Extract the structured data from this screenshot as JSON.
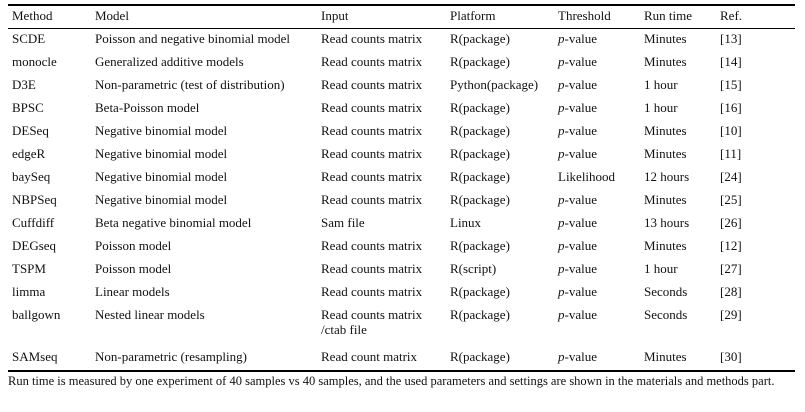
{
  "table": {
    "columns": [
      "Method",
      "Model",
      "Input",
      "Platform",
      "Threshold",
      "Run time",
      "Ref."
    ],
    "rows": [
      {
        "method": "SCDE",
        "model": "Poisson and negative binomial model",
        "input": "Read counts matrix",
        "platform": "R(package)",
        "threshold_prefix": "p",
        "threshold_suffix": "-value",
        "runtime": "Minutes",
        "ref": "[13]"
      },
      {
        "method": "monocle",
        "model": "Generalized additive models",
        "input": "Read counts matrix",
        "platform": "R(package)",
        "threshold_prefix": "p",
        "threshold_suffix": "-value",
        "runtime": "Minutes",
        "ref": "[14]"
      },
      {
        "method": "D3E",
        "model": "Non-parametric (test of distribution)",
        "input": "Read counts matrix",
        "platform": "Python(package)",
        "threshold_prefix": "p",
        "threshold_suffix": "-value",
        "runtime": "1 hour",
        "ref": "[15]"
      },
      {
        "method": "BPSC",
        "model": "Beta-Poisson model",
        "input": "Read counts matrix",
        "platform": "R(package)",
        "threshold_prefix": "p",
        "threshold_suffix": "-value",
        "runtime": "1 hour",
        "ref": "[16]"
      },
      {
        "method": "DESeq",
        "model": "Negative binomial model",
        "input": "Read counts matrix",
        "platform": "R(package)",
        "threshold_prefix": "p",
        "threshold_suffix": "-value",
        "runtime": "Minutes",
        "ref": "[10]"
      },
      {
        "method": "edgeR",
        "model": "Negative binomial model",
        "input": "Read counts matrix",
        "platform": "R(package)",
        "threshold_prefix": "p",
        "threshold_suffix": "-value",
        "runtime": "Minutes",
        "ref": "[11]"
      },
      {
        "method": "baySeq",
        "model": "Negative binomial model",
        "input": "Read counts matrix",
        "platform": "R(package)",
        "threshold_prefix": "",
        "threshold_suffix": "Likelihood",
        "runtime": "12 hours",
        "ref": "[24]"
      },
      {
        "method": "NBPSeq",
        "model": "Negative binomial model",
        "input": "Read counts matrix",
        "platform": "R(package)",
        "threshold_prefix": "p",
        "threshold_suffix": "-value",
        "runtime": "Minutes",
        "ref": "[25]"
      },
      {
        "method": "Cuffdiff",
        "model": "Beta negative binomial model",
        "input": "Sam file",
        "platform": "Linux",
        "threshold_prefix": "p",
        "threshold_suffix": "-value",
        "runtime": "13 hours",
        "ref": "[26]"
      },
      {
        "method": "DEGseq",
        "model": "Poisson model",
        "input": "Read counts matrix",
        "platform": "R(package)",
        "threshold_prefix": "p",
        "threshold_suffix": "-value",
        "runtime": "Minutes",
        "ref": "[12]"
      },
      {
        "method": "TSPM",
        "model": "Poisson model",
        "input": "Read counts matrix",
        "platform": "R(script)",
        "threshold_prefix": "p",
        "threshold_suffix": "-value",
        "runtime": "1 hour",
        "ref": "[27]"
      },
      {
        "method": "limma",
        "model": "Linear models",
        "input": "Read counts matrix",
        "platform": "R(package)",
        "threshold_prefix": "p",
        "threshold_suffix": "-value",
        "runtime": "Seconds",
        "ref": "[28]"
      },
      {
        "method": "ballgown",
        "model": "Nested linear models",
        "input": "Read counts matrix",
        "input_line2": "/ctab file",
        "platform": "R(package)",
        "threshold_prefix": "p",
        "threshold_suffix": "-value",
        "runtime": "Seconds",
        "ref": "[29]"
      },
      {
        "method": "SAMseq",
        "model": "Non-parametric (resampling)",
        "input": "Read count matrix",
        "platform": "R(package)",
        "threshold_prefix": "p",
        "threshold_suffix": "-value",
        "runtime": "Minutes",
        "ref": "[30]"
      }
    ]
  },
  "footnote": "Run time is measured by one experiment of 40 samples vs 40 samples, and the used parameters and settings are shown in the materials and methods part."
}
